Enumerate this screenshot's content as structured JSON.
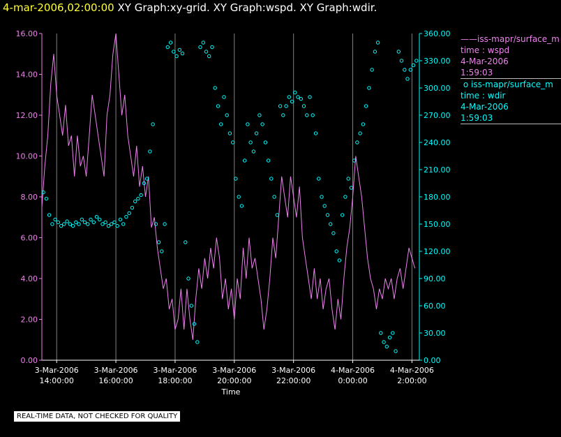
{
  "header": {
    "timestamp": "4-mar-2006,02:00:00",
    "titles": "XY Graph:xy-grid.  XY Graph:wspd.  XY Graph:wdir."
  },
  "footnote": "REAL-TIME DATA, NOT CHECKED FOR QUALITY",
  "legend": {
    "wspd": {
      "symbol": "——",
      "name": "iss-mapr/surface_m",
      "var": "time : wspd",
      "date": "4-Mar-2006",
      "time": "1:59:03"
    },
    "wdir": {
      "symbol": "o",
      "name": "iss-mapr/surface_m",
      "var": "time : wdir",
      "date": "4-Mar-2006",
      "time": "1:59:03"
    }
  },
  "colors": {
    "wspd": "#ee82ee",
    "wdir": "#00ffff",
    "background": "#000000",
    "grid": "#808080",
    "axis": "#ffffff"
  },
  "chart_data": {
    "type": "line",
    "xlabel": "Time",
    "x_range_hours": [
      13.5,
      26.25
    ],
    "x_ticks": [
      {
        "date": "3-Mar-2006",
        "time": "14:00:00",
        "h": 14
      },
      {
        "date": "3-Mar-2006",
        "time": "16:00:00",
        "h": 16
      },
      {
        "date": "3-Mar-2006",
        "time": "18:00:00",
        "h": 18
      },
      {
        "date": "3-Mar-2006",
        "time": "20:00:00",
        "h": 20
      },
      {
        "date": "3-Mar-2006",
        "time": "22:00:00",
        "h": 22
      },
      {
        "date": "4-Mar-2006",
        "time": "0:00:00",
        "h": 24
      },
      {
        "date": "4-Mar-2006",
        "time": "2:00:00",
        "h": 26
      }
    ],
    "y_left": {
      "range": [
        0,
        16
      ],
      "ticks": [
        "0.00",
        "2.00",
        "4.00",
        "6.00",
        "8.00",
        "10.00",
        "12.00",
        "14.00",
        "16.00"
      ]
    },
    "y_right": {
      "range": [
        0,
        360
      ],
      "ticks": [
        "0.00",
        "30.00",
        "60.00",
        "90.00",
        "120.00",
        "150.00",
        "180.00",
        "210.00",
        "240.00",
        "270.00",
        "300.00",
        "330.00",
        "360.00"
      ]
    },
    "grid": "vertical",
    "series": [
      {
        "name": "iss-mapr/surface_m",
        "var": "wspd",
        "style": "line",
        "axis": "left",
        "points": [
          [
            13.5,
            7.5
          ],
          [
            13.6,
            9.5
          ],
          [
            13.7,
            11
          ],
          [
            13.8,
            13.5
          ],
          [
            13.9,
            15
          ],
          [
            14.0,
            13
          ],
          [
            14.1,
            12
          ],
          [
            14.2,
            11
          ],
          [
            14.3,
            12.5
          ],
          [
            14.4,
            10.5
          ],
          [
            14.5,
            11
          ],
          [
            14.6,
            9
          ],
          [
            14.7,
            11
          ],
          [
            14.8,
            9.5
          ],
          [
            14.9,
            10
          ],
          [
            15.0,
            9
          ],
          [
            15.1,
            11
          ],
          [
            15.2,
            13
          ],
          [
            15.3,
            12
          ],
          [
            15.4,
            11
          ],
          [
            15.5,
            10
          ],
          [
            15.6,
            9
          ],
          [
            15.7,
            12
          ],
          [
            15.8,
            13
          ],
          [
            15.9,
            15
          ],
          [
            16.0,
            16
          ],
          [
            16.1,
            14
          ],
          [
            16.2,
            12
          ],
          [
            16.3,
            13
          ],
          [
            16.4,
            11
          ],
          [
            16.5,
            10
          ],
          [
            16.6,
            9
          ],
          [
            16.7,
            10.5
          ],
          [
            16.8,
            8.5
          ],
          [
            16.9,
            9.5
          ],
          [
            17.0,
            8
          ],
          [
            17.1,
            9
          ],
          [
            17.2,
            6.5
          ],
          [
            17.3,
            7
          ],
          [
            17.4,
            5.5
          ],
          [
            17.5,
            4.5
          ],
          [
            17.6,
            3.5
          ],
          [
            17.7,
            4
          ],
          [
            17.8,
            2.5
          ],
          [
            17.9,
            3
          ],
          [
            18.0,
            1.5
          ],
          [
            18.1,
            2
          ],
          [
            18.2,
            3.5
          ],
          [
            18.3,
            1.5
          ],
          [
            18.4,
            3.5
          ],
          [
            18.5,
            2
          ],
          [
            18.6,
            1
          ],
          [
            18.7,
            3
          ],
          [
            18.8,
            4.5
          ],
          [
            18.9,
            3.5
          ],
          [
            19.0,
            5
          ],
          [
            19.1,
            4
          ],
          [
            19.2,
            5.5
          ],
          [
            19.3,
            4.5
          ],
          [
            19.4,
            6
          ],
          [
            19.5,
            5
          ],
          [
            19.6,
            3
          ],
          [
            19.7,
            4
          ],
          [
            19.8,
            2.5
          ],
          [
            19.9,
            3.5
          ],
          [
            20.0,
            2
          ],
          [
            20.1,
            4
          ],
          [
            20.2,
            3
          ],
          [
            20.3,
            5.5
          ],
          [
            20.4,
            4
          ],
          [
            20.5,
            6
          ],
          [
            20.6,
            4.5
          ],
          [
            20.7,
            5
          ],
          [
            20.8,
            4
          ],
          [
            20.9,
            3
          ],
          [
            21.0,
            1.5
          ],
          [
            21.1,
            2.5
          ],
          [
            21.2,
            4
          ],
          [
            21.3,
            6
          ],
          [
            21.4,
            5
          ],
          [
            21.5,
            7
          ],
          [
            21.6,
            9
          ],
          [
            21.7,
            8
          ],
          [
            21.8,
            7
          ],
          [
            21.9,
            9
          ],
          [
            22.0,
            8
          ],
          [
            22.1,
            7
          ],
          [
            22.2,
            8.5
          ],
          [
            22.3,
            6
          ],
          [
            22.4,
            5
          ],
          [
            22.5,
            4
          ],
          [
            22.6,
            3
          ],
          [
            22.7,
            4.5
          ],
          [
            22.8,
            3
          ],
          [
            22.9,
            4
          ],
          [
            23.0,
            2.5
          ],
          [
            23.1,
            3.5
          ],
          [
            23.2,
            4
          ],
          [
            23.3,
            2.5
          ],
          [
            23.4,
            1.5
          ],
          [
            23.5,
            3
          ],
          [
            23.6,
            2
          ],
          [
            23.7,
            4
          ],
          [
            23.8,
            5.5
          ],
          [
            23.9,
            6.5
          ],
          [
            24.0,
            8
          ],
          [
            24.1,
            10
          ],
          [
            24.2,
            9
          ],
          [
            24.3,
            8
          ],
          [
            24.4,
            6.5
          ],
          [
            24.5,
            5
          ],
          [
            24.6,
            4
          ],
          [
            24.7,
            3.5
          ],
          [
            24.8,
            2.5
          ],
          [
            24.9,
            3.5
          ],
          [
            25.0,
            3
          ],
          [
            25.1,
            4
          ],
          [
            25.2,
            3.5
          ],
          [
            25.3,
            4
          ],
          [
            25.4,
            3
          ],
          [
            25.5,
            4
          ],
          [
            25.6,
            4.5
          ],
          [
            25.7,
            3.5
          ],
          [
            25.8,
            4.5
          ],
          [
            25.9,
            5.5
          ],
          [
            26.0,
            5
          ],
          [
            26.1,
            4.5
          ]
        ]
      },
      {
        "name": "iss-mapr/surface_m",
        "var": "wdir",
        "style": "markers",
        "axis": "right",
        "points": [
          [
            13.55,
            185
          ],
          [
            13.65,
            178
          ],
          [
            13.75,
            160
          ],
          [
            13.85,
            150
          ],
          [
            13.95,
            155
          ],
          [
            14.05,
            152
          ],
          [
            14.15,
            148
          ],
          [
            14.25,
            150
          ],
          [
            14.35,
            153
          ],
          [
            14.45,
            150
          ],
          [
            14.55,
            148
          ],
          [
            14.65,
            152
          ],
          [
            14.75,
            150
          ],
          [
            14.85,
            155
          ],
          [
            14.95,
            152
          ],
          [
            15.05,
            150
          ],
          [
            15.15,
            155
          ],
          [
            15.25,
            152
          ],
          [
            15.35,
            158
          ],
          [
            15.45,
            155
          ],
          [
            15.55,
            150
          ],
          [
            15.65,
            152
          ],
          [
            15.75,
            148
          ],
          [
            15.85,
            150
          ],
          [
            15.95,
            152
          ],
          [
            16.05,
            148
          ],
          [
            16.15,
            155
          ],
          [
            16.25,
            150
          ],
          [
            16.35,
            158
          ],
          [
            16.45,
            162
          ],
          [
            16.55,
            168
          ],
          [
            16.65,
            175
          ],
          [
            16.75,
            178
          ],
          [
            16.85,
            182
          ],
          [
            16.95,
            195
          ],
          [
            17.05,
            200
          ],
          [
            17.15,
            230
          ],
          [
            17.25,
            260
          ],
          [
            17.35,
            150
          ],
          [
            17.45,
            130
          ],
          [
            17.55,
            120
          ],
          [
            17.65,
            150
          ],
          [
            17.75,
            345
          ],
          [
            17.85,
            350
          ],
          [
            17.95,
            340
          ],
          [
            18.05,
            335
          ],
          [
            18.15,
            342
          ],
          [
            18.25,
            338
          ],
          [
            18.35,
            130
          ],
          [
            18.45,
            90
          ],
          [
            18.55,
            60
          ],
          [
            18.65,
            40
          ],
          [
            18.75,
            20
          ],
          [
            18.85,
            345
          ],
          [
            18.95,
            350
          ],
          [
            19.05,
            340
          ],
          [
            19.15,
            335
          ],
          [
            19.25,
            345
          ],
          [
            19.35,
            300
          ],
          [
            19.45,
            280
          ],
          [
            19.55,
            260
          ],
          [
            19.65,
            290
          ],
          [
            19.75,
            270
          ],
          [
            19.85,
            250
          ],
          [
            19.95,
            240
          ],
          [
            20.05,
            200
          ],
          [
            20.15,
            180
          ],
          [
            20.25,
            170
          ],
          [
            20.35,
            220
          ],
          [
            20.45,
            260
          ],
          [
            20.55,
            240
          ],
          [
            20.65,
            230
          ],
          [
            20.75,
            250
          ],
          [
            20.85,
            270
          ],
          [
            20.95,
            260
          ],
          [
            21.05,
            240
          ],
          [
            21.15,
            220
          ],
          [
            21.25,
            200
          ],
          [
            21.35,
            180
          ],
          [
            21.45,
            160
          ],
          [
            21.55,
            280
          ],
          [
            21.65,
            270
          ],
          [
            21.75,
            280
          ],
          [
            21.85,
            290
          ],
          [
            21.95,
            285
          ],
          [
            22.05,
            295
          ],
          [
            22.15,
            290
          ],
          [
            22.25,
            288
          ],
          [
            22.35,
            280
          ],
          [
            22.45,
            270
          ],
          [
            22.55,
            290
          ],
          [
            22.65,
            270
          ],
          [
            22.75,
            250
          ],
          [
            22.85,
            200
          ],
          [
            22.95,
            180
          ],
          [
            23.05,
            170
          ],
          [
            23.15,
            160
          ],
          [
            23.25,
            150
          ],
          [
            23.35,
            140
          ],
          [
            23.45,
            120
          ],
          [
            23.55,
            110
          ],
          [
            23.65,
            160
          ],
          [
            23.75,
            180
          ],
          [
            23.85,
            200
          ],
          [
            23.95,
            190
          ],
          [
            24.05,
            220
          ],
          [
            24.15,
            240
          ],
          [
            24.25,
            250
          ],
          [
            24.35,
            260
          ],
          [
            24.45,
            280
          ],
          [
            24.55,
            300
          ],
          [
            24.65,
            320
          ],
          [
            24.75,
            340
          ],
          [
            24.85,
            350
          ],
          [
            24.95,
            30
          ],
          [
            25.05,
            20
          ],
          [
            25.15,
            15
          ],
          [
            25.25,
            25
          ],
          [
            25.35,
            30
          ],
          [
            25.45,
            10
          ],
          [
            25.55,
            340
          ],
          [
            25.65,
            330
          ],
          [
            25.75,
            320
          ],
          [
            25.85,
            310
          ],
          [
            25.95,
            320
          ],
          [
            26.05,
            325
          ],
          [
            26.15,
            330
          ]
        ]
      }
    ]
  }
}
